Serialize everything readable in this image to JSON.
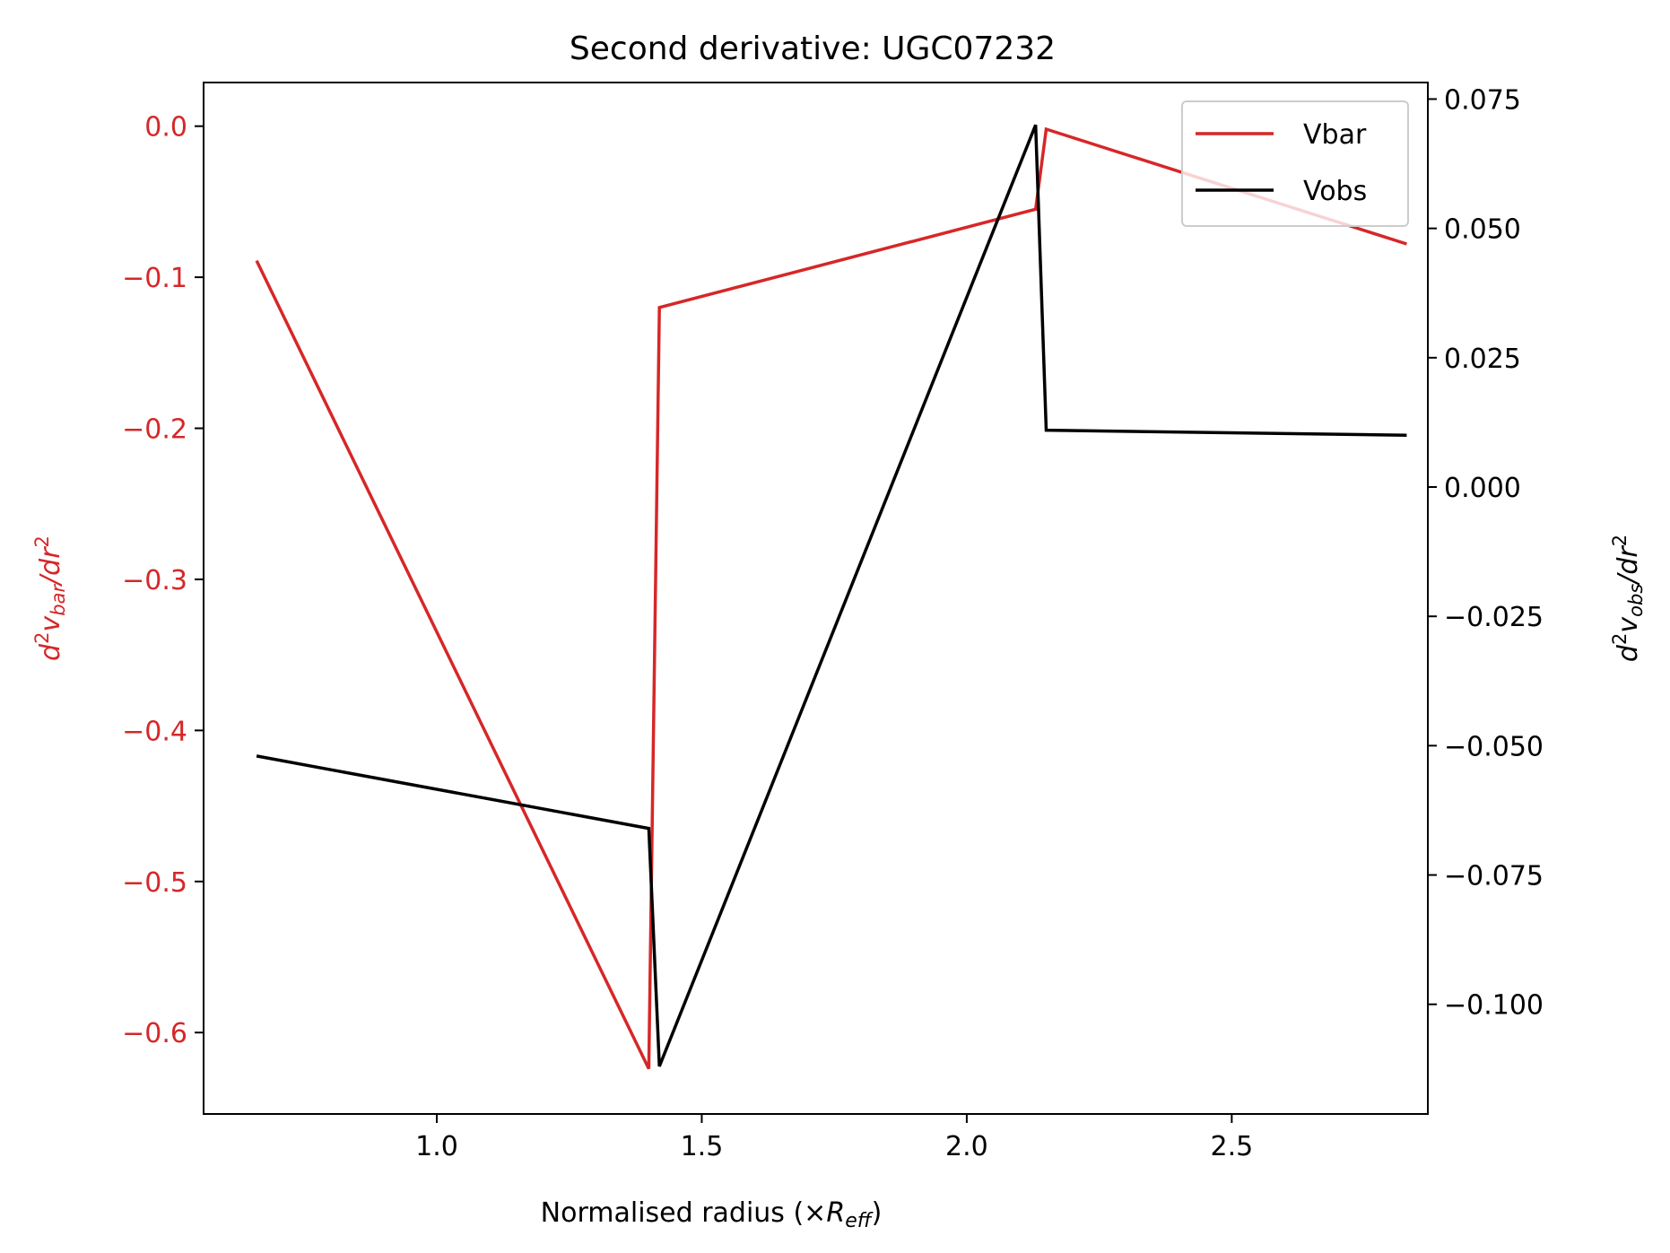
{
  "chart_data": {
    "type": "line",
    "title": "Second derivative: UGC07232",
    "xlabel": "Normalised radius (×R_eff)",
    "xlabel_parts": {
      "main": "Normalised radius (×",
      "italic": "R",
      "sub": "eff",
      "close": ")"
    },
    "ylabel_left": "d²v_bar/dr²",
    "ylabel_left_parts": {
      "d": "d",
      "sup": "2",
      "v": "v",
      "sub": "bar",
      "den": "/dr",
      "sup2": "2"
    },
    "ylabel_right": "d²v_obs/dr²",
    "ylabel_right_parts": {
      "d": "d",
      "sup": "2",
      "v": "v",
      "sub": "obs",
      "den": "/dr",
      "sup2": "2"
    },
    "xlim": [
      0.56,
      2.87
    ],
    "ylim_left": [
      -0.6539,
      0.0289
    ],
    "ylim_right": [
      -0.1212,
      0.0782
    ],
    "x_ticks": [
      1.0,
      1.5,
      2.0,
      2.5
    ],
    "x_tick_labels": [
      "1.0",
      "1.5",
      "2.0",
      "2.5"
    ],
    "y_left_ticks": [
      0.0,
      -0.1,
      -0.2,
      -0.3,
      -0.4,
      -0.5,
      -0.6
    ],
    "y_left_tick_labels": [
      "0.0",
      "−0.1",
      "−0.2",
      "−0.3",
      "−0.4",
      "−0.5",
      "−0.6"
    ],
    "y_right_ticks": [
      0.075,
      0.05,
      0.025,
      0.0,
      -0.025,
      -0.05,
      -0.075,
      -0.1
    ],
    "y_right_tick_labels": [
      "0.075",
      "0.050",
      "0.025",
      "0.000",
      "−0.025",
      "−0.050",
      "−0.075",
      "−0.100"
    ],
    "grid": false,
    "legend_position": "top-right",
    "series": [
      {
        "name": "Vbar",
        "axis": "left",
        "color": "#d62728",
        "x": [
          0.66,
          1.4,
          1.42,
          2.13,
          2.15,
          2.83
        ],
        "y": [
          -0.089,
          -0.624,
          -0.12,
          -0.055,
          -0.002,
          -0.078
        ]
      },
      {
        "name": "Vobs",
        "axis": "right",
        "color": "#000000",
        "x": [
          0.66,
          1.4,
          1.42,
          2.13,
          2.15,
          2.83
        ],
        "y": [
          -0.052,
          -0.066,
          -0.112,
          0.07,
          0.011,
          0.01
        ]
      }
    ],
    "left_axis_color": "#d62728",
    "right_axis_color": "#000000"
  }
}
